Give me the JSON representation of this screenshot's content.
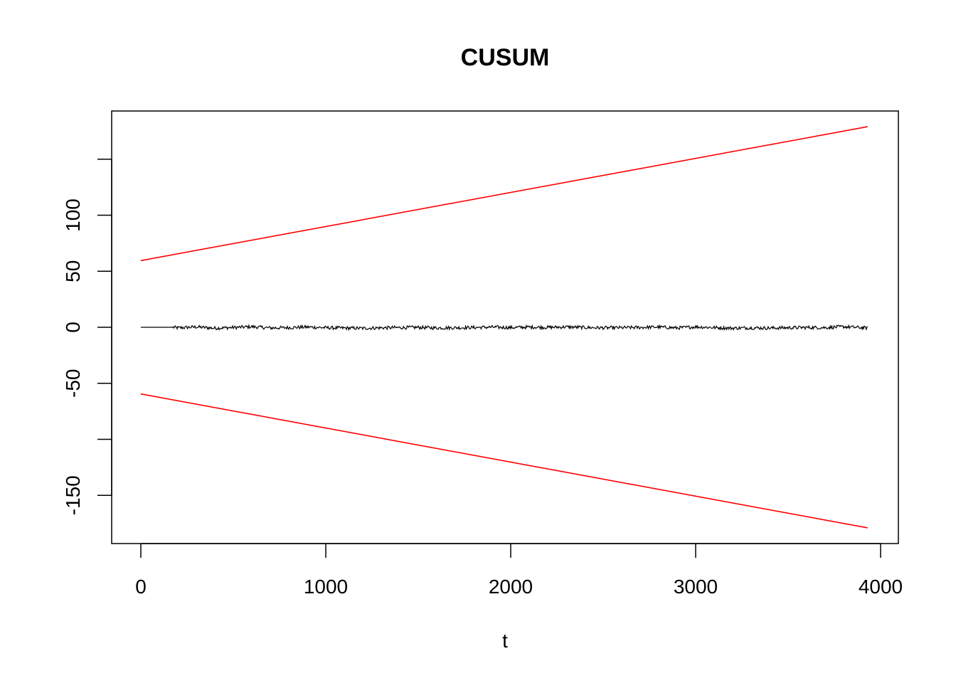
{
  "chart_data": {
    "type": "line",
    "title": "CUSUM",
    "xlabel": "t",
    "ylabel": "",
    "xlim": [
      0,
      4000
    ],
    "ylim": [
      -190,
      200
    ],
    "x_ticks": [
      {
        "value": 0,
        "label": "0"
      },
      {
        "value": 1000,
        "label": "1000"
      },
      {
        "value": 2000,
        "label": "2000"
      },
      {
        "value": 3000,
        "label": "3000"
      },
      {
        "value": 4000,
        "label": "4000"
      }
    ],
    "y_ticks": [
      {
        "value": -150,
        "label": "-150"
      },
      {
        "value": -100,
        "label": ""
      },
      {
        "value": -50,
        "label": "-50"
      },
      {
        "value": 0,
        "label": "0"
      },
      {
        "value": 50,
        "label": "50"
      },
      {
        "value": 100,
        "label": "100"
      },
      {
        "value": 150,
        "label": ""
      }
    ],
    "grid": false,
    "legend": "none",
    "series": [
      {
        "color": "#000000",
        "x": [
          0,
          170,
          200,
          300,
          400,
          500,
          600,
          700,
          800,
          900,
          1000,
          1100,
          1200,
          1300,
          1400,
          1500,
          1600,
          1700,
          1800,
          1900,
          2000,
          2100,
          2200,
          2300,
          2400,
          2500,
          2600,
          2700,
          2800,
          2900,
          3000,
          3100,
          3200,
          3300,
          3400,
          3500,
          3600,
          3700,
          3800,
          3900,
          3930
        ],
        "y": [
          0,
          0,
          -0.5,
          0.3,
          -0.8,
          -0.2,
          0.5,
          -0.6,
          -0.3,
          0.2,
          -0.4,
          -0.7,
          -0.9,
          -0.5,
          -0.3,
          -0.1,
          -0.6,
          -0.4,
          -0.2,
          0.1,
          -0.3,
          0.2,
          -0.1,
          0.3,
          -0.2,
          -0.5,
          -0.4,
          -0.1,
          0.2,
          -0.6,
          0.4,
          -0.3,
          -0.8,
          -0.5,
          -0.7,
          -0.4,
          -0.2,
          -0.3,
          0.5,
          -0.4,
          -0.6
        ],
        "noise_amplitude": 1.5
      },
      {
        "color": "#ff0000",
        "x": [
          0,
          3930
        ],
        "y": [
          59.5,
          179
        ]
      },
      {
        "color": "#ff0000",
        "x": [
          0,
          3930
        ],
        "y": [
          -59.5,
          -179
        ]
      }
    ]
  }
}
